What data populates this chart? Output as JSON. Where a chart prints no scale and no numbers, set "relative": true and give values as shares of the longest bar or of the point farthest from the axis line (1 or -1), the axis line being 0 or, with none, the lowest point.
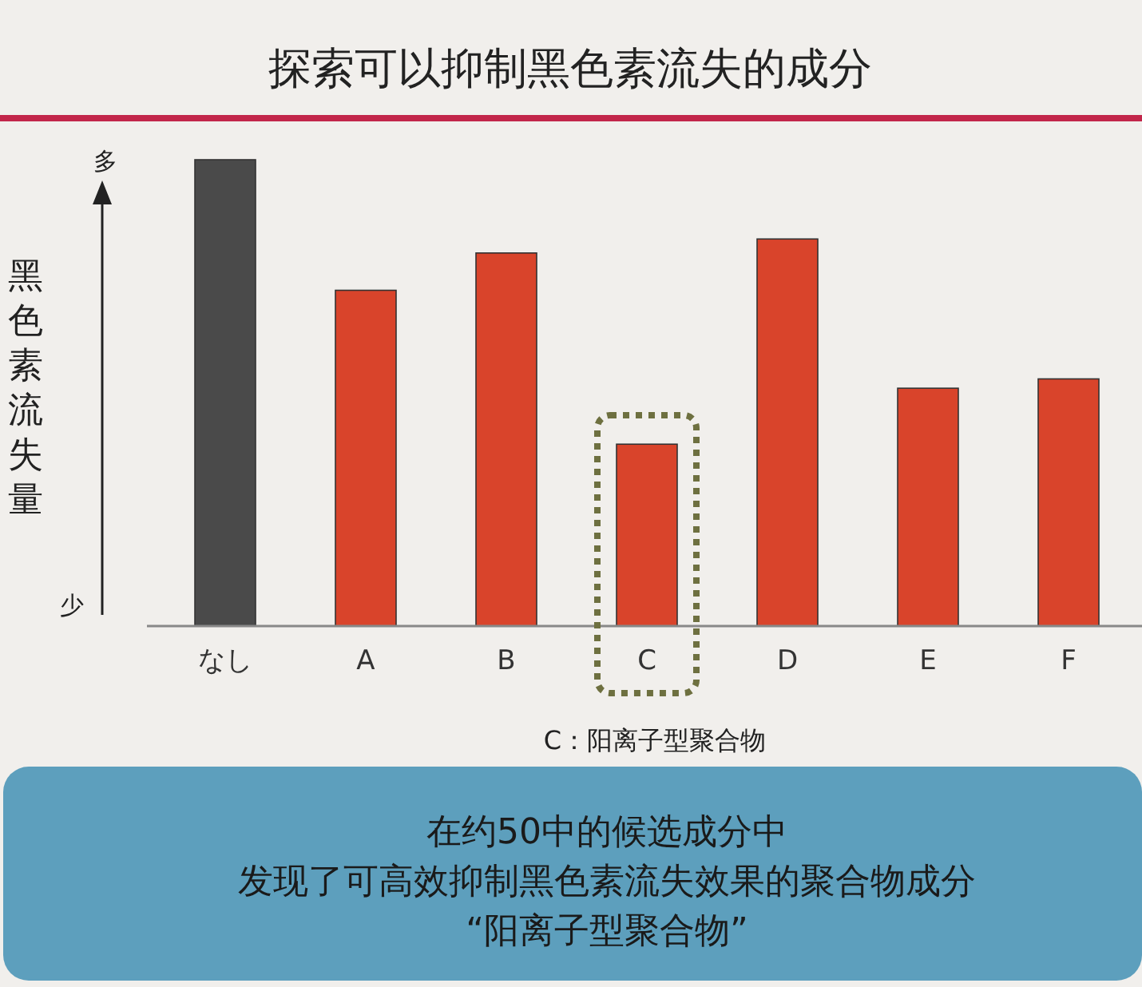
{
  "chart_data": {
    "type": "bar",
    "relative": true,
    "title": "探索可以抑制黑色素流失的成分",
    "ylabel": "黑色素流失量",
    "categories": [
      "なし",
      "A",
      "B",
      "C",
      "D",
      "E",
      "F"
    ],
    "values": [
      1,
      0.72,
      0.8,
      0.39,
      0.83,
      0.51,
      0.53
    ],
    "colors": [
      "#4a4a4a",
      "#d9442b",
      "#d9442b",
      "#d9442b",
      "#d9442b",
      "#d9442b",
      "#d9442b"
    ],
    "annotations": [
      "多",
      "少",
      "C：阳离子型聚合物",
      "在约50中的候选成分中",
      "发现了可高效抑制黑色素流失效果的聚合物成分",
      "“阳离子型聚合物”"
    ]
  }
}
